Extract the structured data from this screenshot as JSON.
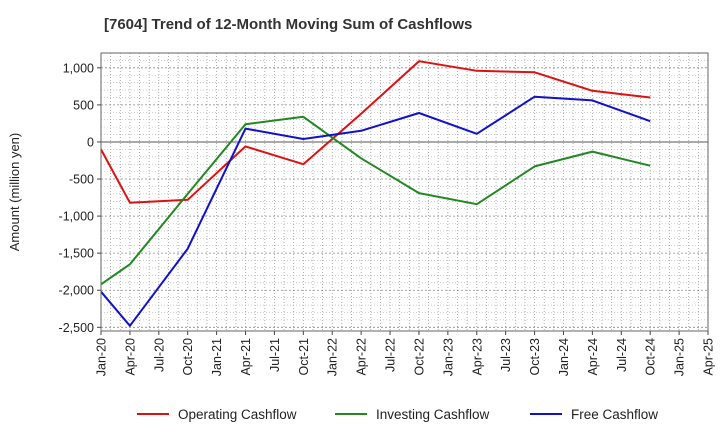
{
  "chart_data": {
    "type": "line",
    "title": "[7604]  Trend of 12-Month Moving Sum of Cashflows",
    "ylabel": "Amount (million yen)",
    "xlabel": "",
    "ylim": [
      -2550,
      1200
    ],
    "yticks": [
      1000,
      500,
      0,
      -500,
      -1000,
      -1500,
      -2000,
      -2500
    ],
    "ytick_labels": [
      "1,000",
      "500",
      "0",
      "-500",
      "-1,000",
      "-1,500",
      "-2,000",
      "-2,500"
    ],
    "categories": [
      "Jan-20",
      "Apr-20",
      "Jul-20",
      "Oct-20",
      "Jan-21",
      "Apr-21",
      "Jul-21",
      "Oct-21",
      "Jan-22",
      "Apr-22",
      "Jul-22",
      "Oct-22",
      "Jan-23",
      "Apr-23",
      "Jul-23",
      "Oct-23",
      "Jan-24",
      "Apr-24",
      "Jul-24",
      "Oct-24",
      "Jan-25",
      "Apr-25"
    ],
    "grid": true,
    "legend_position": "bottom",
    "series": [
      {
        "name": "Operating Cashflow",
        "color": "#dd1111",
        "points": [
          {
            "x": "Jan-20",
            "y": -100
          },
          {
            "x": "Apr-20",
            "y": -820
          },
          {
            "x": "Oct-20",
            "y": -780
          },
          {
            "x": "Apr-21",
            "y": -60
          },
          {
            "x": "Oct-21",
            "y": -300
          },
          {
            "x": "Apr-22",
            "y": 380
          },
          {
            "x": "Oct-22",
            "y": 1090
          },
          {
            "x": "Apr-23",
            "y": 960
          },
          {
            "x": "Oct-23",
            "y": 940
          },
          {
            "x": "Apr-24",
            "y": 690
          },
          {
            "x": "Oct-24",
            "y": 600
          }
        ]
      },
      {
        "name": "Investing Cashflow",
        "color": "#228822",
        "points": [
          {
            "x": "Jan-20",
            "y": -1920
          },
          {
            "x": "Apr-20",
            "y": -1650
          },
          {
            "x": "Oct-20",
            "y": -700
          },
          {
            "x": "Apr-21",
            "y": 240
          },
          {
            "x": "Oct-21",
            "y": 340
          },
          {
            "x": "Apr-22",
            "y": -220
          },
          {
            "x": "Oct-22",
            "y": -690
          },
          {
            "x": "Apr-23",
            "y": -840
          },
          {
            "x": "Oct-23",
            "y": -330
          },
          {
            "x": "Apr-24",
            "y": -130
          },
          {
            "x": "Oct-24",
            "y": -320
          }
        ]
      },
      {
        "name": "Free Cashflow",
        "color": "#1111cc",
        "points": [
          {
            "x": "Jan-20",
            "y": -2020
          },
          {
            "x": "Apr-20",
            "y": -2480
          },
          {
            "x": "Oct-20",
            "y": -1440
          },
          {
            "x": "Apr-21",
            "y": 180
          },
          {
            "x": "Oct-21",
            "y": 40
          },
          {
            "x": "Apr-22",
            "y": 150
          },
          {
            "x": "Oct-22",
            "y": 390
          },
          {
            "x": "Apr-23",
            "y": 110
          },
          {
            "x": "Oct-23",
            "y": 610
          },
          {
            "x": "Apr-24",
            "y": 560
          },
          {
            "x": "Oct-24",
            "y": 280
          }
        ]
      }
    ]
  }
}
